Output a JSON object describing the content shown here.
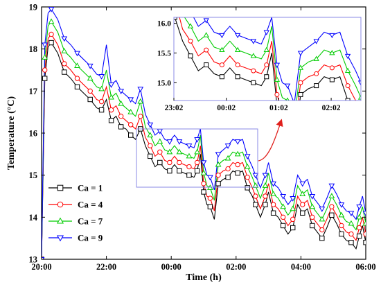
{
  "chart_data": {
    "type": "line",
    "xlabel": "Time (h)",
    "ylabel": "Temperature (°C)",
    "x_unit": "h",
    "xlim": [
      20,
      30
    ],
    "ylim": [
      13,
      19
    ],
    "x_ticks": [
      20,
      22,
      24,
      26,
      28,
      30
    ],
    "x_tick_labels": [
      "20:00",
      "22:00",
      "00:00",
      "02:00",
      "04:00",
      "06:00"
    ],
    "y_ticks": [
      13,
      14,
      15,
      16,
      17,
      18,
      19
    ],
    "y_tick_labels": [
      "13",
      "14",
      "15",
      "16",
      "17",
      "18",
      "19"
    ],
    "legend_position": "bottom-left",
    "x": [
      20.0,
      20.1,
      20.2,
      20.3,
      20.5,
      20.7,
      20.9,
      21.1,
      21.3,
      21.5,
      21.7,
      21.85,
      22.0,
      22.15,
      22.3,
      22.45,
      22.6,
      22.75,
      22.9,
      23.05,
      23.2,
      23.35,
      23.5,
      23.65,
      23.8,
      23.95,
      24.1,
      24.25,
      24.4,
      24.55,
      24.7,
      24.8,
      24.9,
      25.0,
      25.1,
      25.2,
      25.33,
      25.45,
      25.6,
      25.75,
      25.9,
      26.05,
      26.2,
      26.35,
      26.5,
      26.6,
      26.75,
      26.9,
      27.0,
      27.15,
      27.3,
      27.45,
      27.6,
      27.75,
      27.9,
      28.05,
      28.2,
      28.35,
      28.5,
      28.65,
      28.8,
      28.95,
      29.1,
      29.25,
      29.4,
      29.55,
      29.7,
      29.8,
      29.9,
      30.0
    ],
    "series": [
      {
        "name": "Ca = 1",
        "color": "#000000",
        "marker": "square",
        "values": [
          13.0,
          17.3,
          18.05,
          18.15,
          17.9,
          17.45,
          17.3,
          17.1,
          16.95,
          16.8,
          16.6,
          16.55,
          16.8,
          16.3,
          16.4,
          16.15,
          16.1,
          15.95,
          15.85,
          16.1,
          15.7,
          15.45,
          15.2,
          15.3,
          15.15,
          15.1,
          15.25,
          15.1,
          15.05,
          15.0,
          14.95,
          15.1,
          15.5,
          14.6,
          14.3,
          14.25,
          13.95,
          14.8,
          14.9,
          14.95,
          15.1,
          15.05,
          15.1,
          14.7,
          14.5,
          14.3,
          14.0,
          14.3,
          14.6,
          14.1,
          14.0,
          13.8,
          13.6,
          13.75,
          14.3,
          14.1,
          14.2,
          13.8,
          13.65,
          13.5,
          13.75,
          14.05,
          13.85,
          13.6,
          13.45,
          13.4,
          13.25,
          13.55,
          13.8,
          13.4
        ]
      },
      {
        "name": "Ca = 4",
        "color": "#ff0000",
        "marker": "circle",
        "values": [
          13.0,
          17.5,
          18.25,
          18.35,
          18.1,
          17.65,
          17.5,
          17.3,
          17.15,
          17.0,
          16.8,
          16.75,
          17.1,
          16.55,
          16.65,
          16.4,
          16.3,
          16.2,
          16.1,
          16.4,
          15.9,
          15.7,
          15.45,
          15.55,
          15.35,
          15.3,
          15.45,
          15.3,
          15.25,
          15.2,
          15.15,
          15.3,
          15.7,
          14.8,
          14.5,
          14.45,
          14.15,
          15.0,
          15.1,
          15.15,
          15.3,
          15.25,
          15.3,
          14.95,
          14.7,
          14.5,
          14.2,
          14.5,
          14.8,
          14.3,
          14.2,
          14.0,
          13.8,
          13.95,
          14.5,
          14.3,
          14.4,
          14.0,
          13.85,
          13.7,
          13.95,
          14.25,
          14.05,
          13.8,
          13.65,
          13.6,
          13.45,
          13.75,
          14.0,
          13.6
        ]
      },
      {
        "name": "Ca = 7",
        "color": "#00cc00",
        "marker": "triangle-up",
        "values": [
          13.0,
          17.8,
          18.55,
          18.65,
          18.4,
          17.95,
          17.8,
          17.6,
          17.45,
          17.3,
          17.1,
          17.05,
          17.5,
          16.85,
          16.95,
          16.7,
          16.6,
          16.5,
          16.4,
          16.75,
          16.15,
          15.95,
          15.7,
          15.8,
          15.6,
          15.55,
          15.7,
          15.55,
          15.5,
          15.45,
          15.4,
          15.55,
          15.95,
          15.05,
          14.75,
          14.7,
          14.4,
          15.25,
          15.35,
          15.4,
          15.55,
          15.5,
          15.55,
          15.2,
          14.95,
          14.75,
          14.45,
          14.75,
          15.05,
          14.55,
          14.45,
          14.25,
          14.05,
          14.2,
          14.75,
          14.55,
          14.65,
          14.25,
          14.1,
          13.95,
          14.2,
          14.5,
          14.3,
          14.05,
          13.9,
          13.85,
          13.7,
          14.0,
          14.25,
          13.85
        ]
      },
      {
        "name": "Ca = 9",
        "color": "#0000ff",
        "marker": "triangle-down",
        "values": [
          13.0,
          18.1,
          18.85,
          18.95,
          18.7,
          18.25,
          18.1,
          17.9,
          17.75,
          17.6,
          17.4,
          17.35,
          18.1,
          17.15,
          17.25,
          17.0,
          16.9,
          16.8,
          16.7,
          17.05,
          16.45,
          16.2,
          15.95,
          16.05,
          15.85,
          15.8,
          15.95,
          15.8,
          15.75,
          15.7,
          15.65,
          15.85,
          16.1,
          15.3,
          15.0,
          14.95,
          14.65,
          15.5,
          15.6,
          15.7,
          15.85,
          15.8,
          15.85,
          15.45,
          15.2,
          15.0,
          14.7,
          15.0,
          15.3,
          14.8,
          14.7,
          14.5,
          14.3,
          14.45,
          15.0,
          14.8,
          14.9,
          14.5,
          14.35,
          14.2,
          14.45,
          14.75,
          14.55,
          14.3,
          14.15,
          14.1,
          13.95,
          14.25,
          14.5,
          14.1
        ]
      }
    ],
    "inset": {
      "xlim": [
        23.033,
        26.6
      ],
      "ylim": [
        14.7,
        16.1
      ],
      "x_ticks": [
        23.033,
        24.033,
        25.033,
        26.033
      ],
      "x_tick_labels": [
        "23:02",
        "00:02",
        "01:02",
        "02:02"
      ],
      "y_ticks": [
        15.0,
        15.5,
        16.0
      ],
      "y_tick_labels": [
        "15.0",
        "15.5",
        "16.0"
      ]
    }
  }
}
